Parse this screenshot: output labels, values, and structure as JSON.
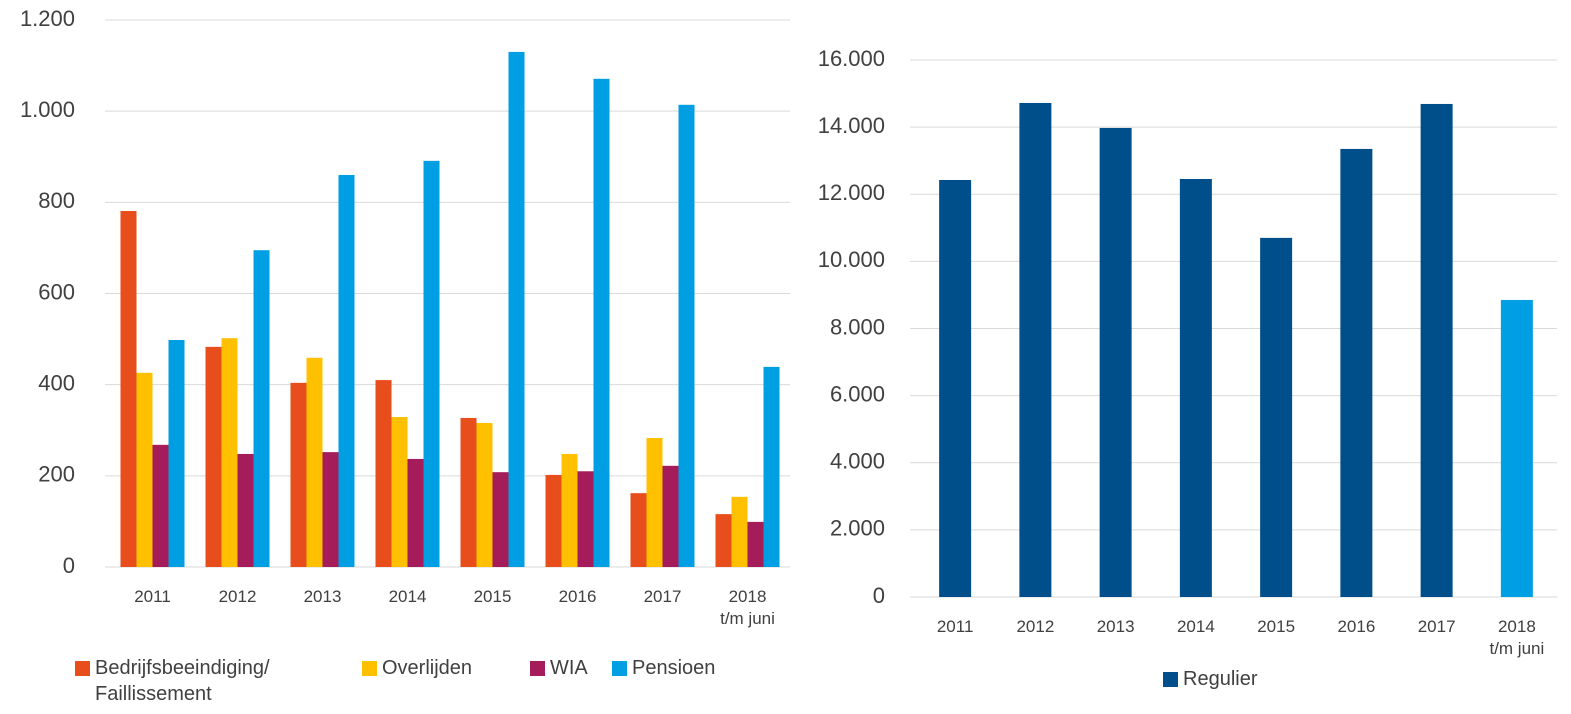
{
  "chart_data": [
    {
      "type": "bar",
      "categories": [
        "2011",
        "2012",
        "2013",
        "2014",
        "2015",
        "2016",
        "2017",
        "2018\nt/m juni"
      ],
      "series": [
        {
          "name": "Bedrijfsbeeindiging/\nFaillissement",
          "color": "#e84e1b",
          "values": [
            781,
            483,
            404,
            410,
            327,
            202,
            162,
            116
          ]
        },
        {
          "name": "Overlijden",
          "color": "#ffc000",
          "values": [
            426,
            502,
            459,
            329,
            316,
            248,
            283,
            154
          ]
        },
        {
          "name": "WIA",
          "color": "#a51c5a",
          "values": [
            268,
            248,
            252,
            237,
            208,
            210,
            222,
            99
          ]
        },
        {
          "name": "Pensioen",
          "color": "#009fe3",
          "values": [
            498,
            695,
            860,
            891,
            1130,
            1071,
            1014,
            439
          ]
        }
      ],
      "ylim": [
        0,
        1200
      ],
      "yticks": [
        0,
        200,
        400,
        600,
        800,
        {
          "value": 1000,
          "label": "1.000"
        },
        {
          "value": 1200,
          "label": "1.200"
        }
      ],
      "grid": true,
      "legend": "bottom"
    },
    {
      "type": "bar",
      "categories": [
        "2011",
        "2012",
        "2013",
        "2014",
        "2015",
        "2016",
        "2017",
        "2018\nt/m juni"
      ],
      "series": [
        {
          "name": "Regulier",
          "color": "#004f8a",
          "values": [
            12425,
            14720,
            13975,
            12455,
            10700,
            13350,
            14690,
            8850
          ],
          "bar_colors": [
            "#004f8a",
            "#004f8a",
            "#004f8a",
            "#004f8a",
            "#004f8a",
            "#004f8a",
            "#004f8a",
            "#009fe3"
          ]
        }
      ],
      "ylim": [
        0,
        16000
      ],
      "yticks": [
        0,
        {
          "value": 2000,
          "label": "2.000"
        },
        {
          "value": 4000,
          "label": "4.000"
        },
        {
          "value": 6000,
          "label": "6.000"
        },
        {
          "value": 8000,
          "label": "8.000"
        },
        {
          "value": 10000,
          "label": "10.000"
        },
        {
          "value": 12000,
          "label": "12.000"
        },
        {
          "value": 14000,
          "label": "14.000"
        },
        {
          "value": 16000,
          "label": "16.000"
        }
      ],
      "grid": true,
      "legend": "bottom"
    }
  ]
}
